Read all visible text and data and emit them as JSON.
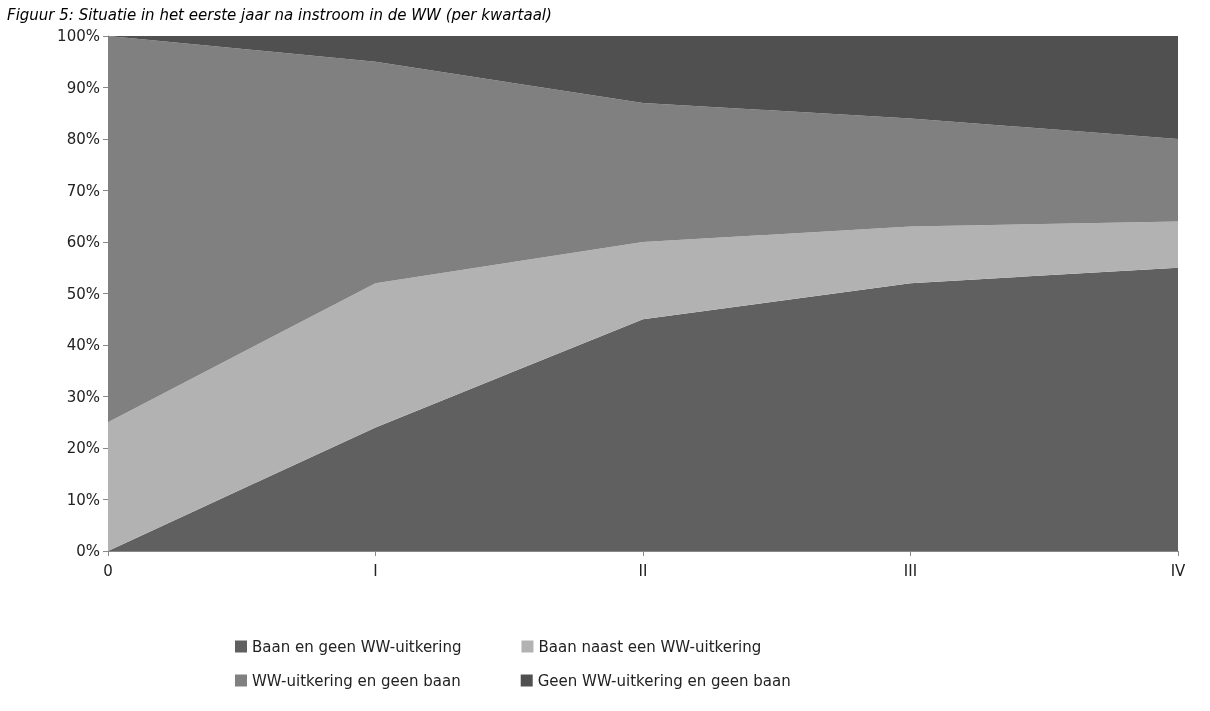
{
  "chart_data": {
    "type": "area",
    "title": "Figuur 5: Situatie in het eerste jaar na instroom in de WW (per kwartaal)",
    "categories": [
      "0",
      "I",
      "II",
      "III",
      "IV"
    ],
    "stacked": true,
    "series": [
      {
        "name": "Baan en geen WW-uitkering",
        "color": "#606060",
        "values": [
          0,
          24,
          45,
          52,
          55
        ]
      },
      {
        "name": "Baan naast een WW-uitkering",
        "color": "#b2b2b2",
        "values": [
          25,
          28,
          15,
          11,
          9
        ]
      },
      {
        "name": "WW-uitkering en geen baan",
        "color": "#808080",
        "values": [
          75,
          43,
          27,
          21,
          16
        ]
      },
      {
        "name": "Geen WW-uitkering en geen baan",
        "color": "#505050",
        "values": [
          0,
          5,
          13,
          16,
          20
        ]
      }
    ],
    "ylim": [
      0,
      100
    ],
    "yticks": [
      {
        "value": 0,
        "label": "0%"
      },
      {
        "value": 10,
        "label": "10%"
      },
      {
        "value": 20,
        "label": "20%"
      },
      {
        "value": 30,
        "label": "30%"
      },
      {
        "value": 40,
        "label": "40%"
      },
      {
        "value": 50,
        "label": "50%"
      },
      {
        "value": 60,
        "label": "60%"
      },
      {
        "value": 70,
        "label": "70%"
      },
      {
        "value": 80,
        "label": "80%"
      },
      {
        "value": 90,
        "label": "90%"
      },
      {
        "value": 100,
        "label": "100%"
      }
    ],
    "grid": false,
    "legend": "bottom",
    "marker": "none"
  }
}
